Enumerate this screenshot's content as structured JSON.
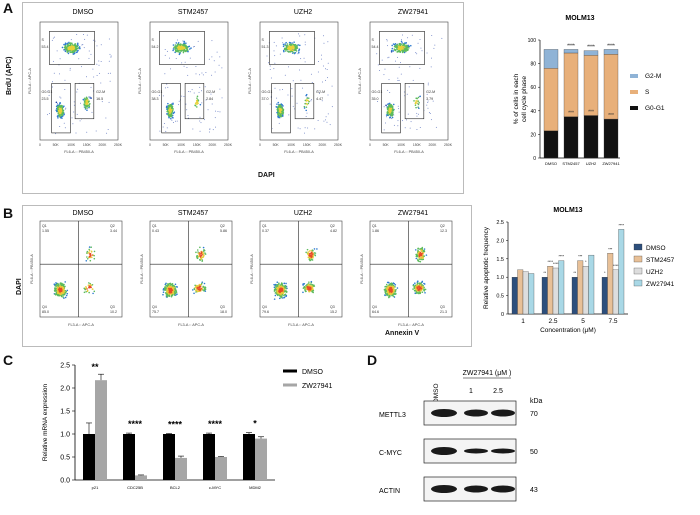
{
  "panels": {
    "A": "A",
    "B": "B",
    "C": "C",
    "D": "D"
  },
  "panel_a": {
    "flow_titles": [
      "DMSO",
      "STM2457",
      "UZH2",
      "ZW27941"
    ],
    "y_axis_label": "BrdU (APC)",
    "x_axis_label": "DAPI",
    "x_tick_labels": [
      "0",
      "50K",
      "100K",
      "150K",
      "200K",
      "250K"
    ],
    "x_axis_name": "FL6-A :: PB450-A",
    "y_axis_name": "FL5-A :: APC-A",
    "gates": [
      {
        "s": "S",
        "s_val": "53.4",
        "g1": "G0-G1",
        "g1_val": "23.5",
        "g2": "G2-M",
        "g2_val": "16.5"
      },
      {
        "s": "S",
        "s_val": "54.2",
        "g1": "G0-G1",
        "g1_val": "38.3",
        "g2": "G2-M",
        "g2_val": "2.84"
      },
      {
        "s": "S",
        "s_val": "51.3",
        "g1": "G0-G1",
        "g1_val": "37.0",
        "g2": "G2-M",
        "g2_val": "4.47"
      },
      {
        "s": "S",
        "s_val": "54.4",
        "g1": "G0-G1",
        "g1_val": "35.0",
        "g2": "G2-M",
        "g2_val": "3.79"
      }
    ]
  },
  "panel_b": {
    "flow_titles": [
      "DMSO",
      "STM2457",
      "UZH2",
      "ZW27941"
    ],
    "y_axis_label": "DAPI",
    "x_axis_label": "Annexin V",
    "x_axis_name": "FL3-A :: APC-A",
    "y_axis_name": "FL6-A :: PB450-A",
    "quadrants": [
      {
        "q1": "Q1",
        "q1_val": "1.55",
        "q2": "Q2",
        "q2_val": "3.44",
        "q3": "Q3",
        "q3_val": "10.2",
        "q4": "Q4",
        "q4_val": "85.0"
      },
      {
        "q1": "Q1",
        "q1_val": "0.43",
        "q2": "Q2",
        "q2_val": "5.86",
        "q3": "Q3",
        "q3_val": "18.0",
        "q4": "Q4",
        "q4_val": "75.7"
      },
      {
        "q1": "Q1",
        "q1_val": "0.37",
        "q2": "Q2",
        "q2_val": "4.82",
        "q3": "Q3",
        "q3_val": "15.2",
        "q4": "Q4",
        "q4_val": "79.6"
      },
      {
        "q1": "Q1",
        "q1_val": "1.86",
        "q2": "Q2",
        "q2_val": "12.3",
        "q3": "Q3",
        "q3_val": "21.3",
        "q4": "Q4",
        "q4_val": "64.6"
      }
    ]
  },
  "panel_d": {
    "col_dmso": "DMSO",
    "treatment_label": "ZW27941 (μM )",
    "doses": [
      "1",
      "2.5"
    ],
    "kda_label": "kDa",
    "rows": [
      {
        "name": "METTL3",
        "kda": "70"
      },
      {
        "name": "C-MYC",
        "kda": "50"
      },
      {
        "name": "ACTIN",
        "kda": "43"
      }
    ]
  },
  "colors": {
    "g0g1": "#111111",
    "s_phase": "#e8b07a",
    "g2m": "#8fb3d6",
    "dmso_b": "#2d4f7c",
    "stm_b": "#e8c097",
    "uzh_b": "#dddddd",
    "zw_b": "#a9d8e6",
    "dmso_c": "#000000",
    "zw_c": "#a6a6a6"
  },
  "chart_data": [
    {
      "id": "cell-cycle",
      "type": "bar",
      "stacked": true,
      "title": "MOLM13",
      "ylabel": "% of cells in each cell cycle phase",
      "ylim": [
        0,
        100
      ],
      "yticks": [
        0,
        20,
        40,
        60,
        80,
        100
      ],
      "categories": [
        "DMSO",
        "STM2457",
        "UZH2",
        "ZW27941"
      ],
      "series": [
        {
          "name": "G0-G1",
          "values": [
            23,
            35,
            36,
            33
          ]
        },
        {
          "name": "S",
          "values": [
            53,
            54,
            51,
            55
          ]
        },
        {
          "name": "G2-M",
          "values": [
            16,
            3,
            4,
            4
          ]
        }
      ],
      "annotations_top": [
        "",
        "****",
        "****",
        "****"
      ],
      "annotations_g1": [
        "",
        "***",
        "***",
        "***"
      ],
      "legend": [
        "G2-M",
        "S",
        "G0-G1"
      ]
    },
    {
      "id": "apoptosis",
      "type": "bar",
      "title": "MOLM13",
      "xlabel": "Concentration (μM)",
      "ylabel": "Relative apoptotic frequency",
      "ylim": [
        0,
        2.5
      ],
      "yticks": [
        0,
        0.5,
        1.0,
        1.5,
        2.0,
        2.5
      ],
      "ytick_labels": [
        "0",
        "0.5",
        "1.0",
        "1.5",
        "2.0",
        "2.5"
      ],
      "categories": [
        "1",
        "2.5",
        "5",
        "7.5"
      ],
      "series": [
        {
          "name": "DMSO",
          "values": [
            1.0,
            1.0,
            1.0,
            1.0
          ]
        },
        {
          "name": "STM2457",
          "values": [
            1.2,
            1.3,
            1.45,
            1.65
          ]
        },
        {
          "name": "UZH2",
          "values": [
            1.15,
            1.25,
            1.3,
            1.2
          ]
        },
        {
          "name": "ZW27941",
          "values": [
            1.1,
            1.45,
            1.6,
            2.3
          ]
        }
      ],
      "annotations": [
        [
          "",
          "**",
          "**",
          "*"
        ],
        [
          "",
          "****",
          "***",
          "***"
        ],
        [
          "",
          "****",
          "*",
          "****"
        ],
        [
          "",
          "****",
          "",
          "****"
        ]
      ]
    },
    {
      "id": "mrna",
      "type": "bar",
      "ylabel": "Relative mRNA expression",
      "ylim": [
        0,
        2.5
      ],
      "yticks": [
        0,
        0.5,
        1.0,
        1.5,
        2.0,
        2.5
      ],
      "ytick_labels": [
        "0.0",
        "0.5",
        "1.0",
        "1.5",
        "2.0",
        "2.5"
      ],
      "categories": [
        "p21",
        "CDC25B",
        "BCL2",
        "c-MYC",
        "MDM2"
      ],
      "series": [
        {
          "name": "DMSO",
          "values": [
            1.0,
            1.0,
            1.0,
            1.0,
            1.0
          ]
        },
        {
          "name": "ZW27941",
          "values": [
            2.17,
            0.1,
            0.48,
            0.5,
            0.9
          ]
        }
      ],
      "errors_dmso": [
        0.24,
        0.02,
        0.01,
        0.02,
        0.03
      ],
      "errors_zw": [
        0.13,
        0.01,
        0.04,
        0.01,
        0.04
      ],
      "significance": [
        "**",
        "****",
        "****",
        "****",
        "*"
      ],
      "legend": [
        "DMSO",
        "ZW27941"
      ]
    }
  ]
}
